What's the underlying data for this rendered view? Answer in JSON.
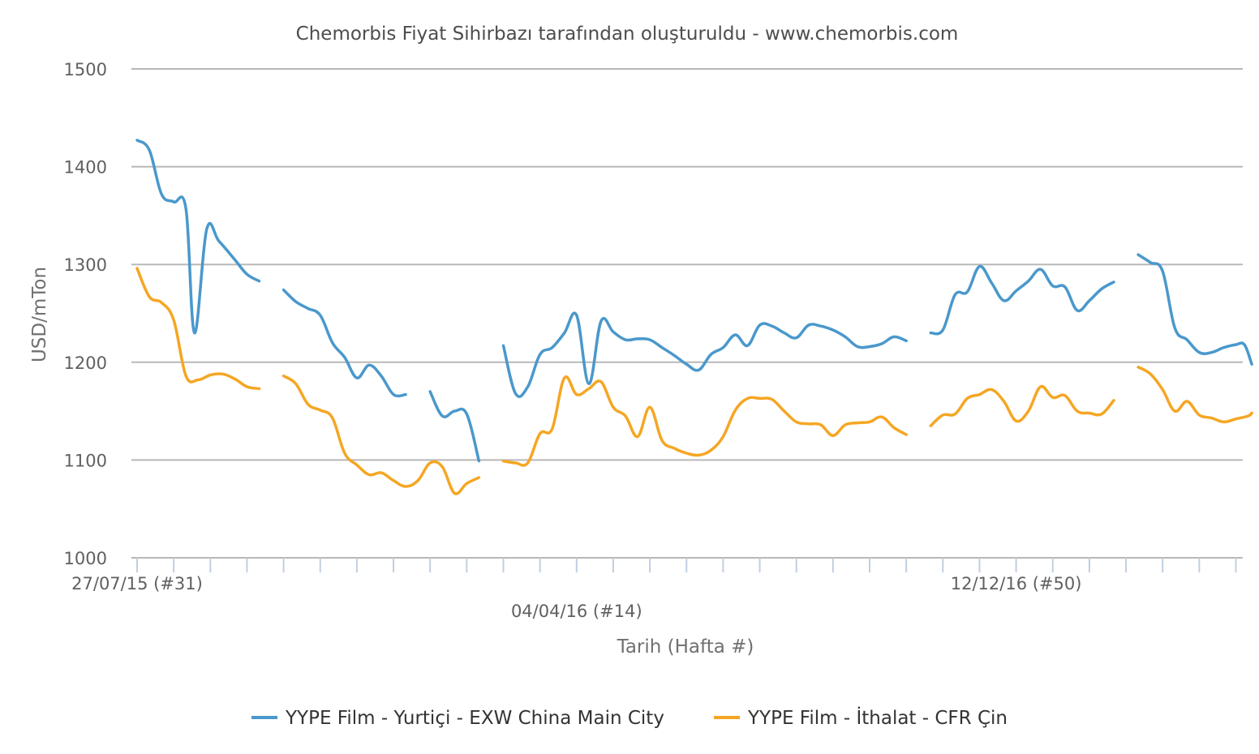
{
  "chart_data": {
    "type": "line",
    "title": "Chemorbis Fiyat Sihirbazı tarafından oluşturuldu - www.chemorbis.com",
    "xlabel": "Tarih (Hafta #)",
    "ylabel": "USD/mTon",
    "ylim": [
      1000,
      1500
    ],
    "yticks": [
      1000,
      1100,
      1200,
      1300,
      1400,
      1500
    ],
    "x_tick_labels": [
      {
        "label": "27/07/15 (#31)",
        "week": 0
      },
      {
        "label": "04/04/16 (#14)",
        "week": 36
      },
      {
        "label": "12/12/16 (#50)",
        "week": 72
      }
    ],
    "x_range_weeks": [
      0,
      90
    ],
    "grid": true,
    "legend_position": "bottom",
    "series": [
      {
        "name": "YYPE Film - Yurtiçi - EXW China Main City",
        "color": "#4a98cc",
        "segments": [
          [
            [
              0,
              1427
            ],
            [
              1,
              1417
            ],
            [
              2,
              1372
            ],
            [
              3,
              1364
            ],
            [
              4,
              1357
            ],
            [
              4.7,
              1230
            ],
            [
              5.7,
              1336
            ],
            [
              6.7,
              1324
            ],
            [
              8,
              1305
            ],
            [
              9,
              1290
            ],
            [
              10,
              1283
            ]
          ],
          [
            [
              12,
              1274
            ],
            [
              13,
              1262
            ],
            [
              14,
              1255
            ],
            [
              15,
              1248
            ],
            [
              16,
              1220
            ],
            [
              17,
              1205
            ],
            [
              18,
              1184
            ],
            [
              19,
              1197
            ],
            [
              20,
              1186
            ],
            [
              21,
              1167
            ],
            [
              22,
              1167
            ]
          ],
          [
            [
              24,
              1170
            ],
            [
              25,
              1145
            ],
            [
              26,
              1150
            ],
            [
              27,
              1147
            ],
            [
              28,
              1099
            ]
          ],
          [
            [
              30,
              1217
            ],
            [
              31,
              1168
            ],
            [
              32,
              1175
            ],
            [
              33,
              1208
            ],
            [
              34,
              1215
            ],
            [
              35,
              1230
            ],
            [
              36,
              1248
            ],
            [
              37,
              1178
            ],
            [
              38,
              1242
            ],
            [
              39,
              1231
            ],
            [
              40,
              1223
            ],
            [
              41,
              1224
            ],
            [
              42,
              1223
            ],
            [
              43,
              1215
            ],
            [
              44,
              1207
            ],
            [
              45,
              1198
            ],
            [
              46,
              1192
            ],
            [
              47,
              1208
            ],
            [
              48,
              1215
            ],
            [
              49,
              1228
            ],
            [
              50,
              1217
            ],
            [
              51,
              1238
            ],
            [
              52,
              1237
            ],
            [
              53,
              1230
            ],
            [
              54,
              1225
            ],
            [
              55,
              1238
            ],
            [
              56,
              1237
            ],
            [
              57,
              1233
            ],
            [
              58,
              1226
            ],
            [
              59,
              1216
            ],
            [
              60,
              1216
            ],
            [
              61,
              1219
            ],
            [
              62,
              1226
            ],
            [
              63,
              1222
            ]
          ],
          [
            [
              65,
              1230
            ],
            [
              66,
              1233
            ],
            [
              67,
              1269
            ],
            [
              68,
              1272
            ],
            [
              69,
              1298
            ],
            [
              70,
              1281
            ],
            [
              71,
              1263
            ],
            [
              72,
              1273
            ],
            [
              73,
              1283
            ],
            [
              74,
              1295
            ],
            [
              75,
              1278
            ],
            [
              76,
              1277
            ],
            [
              77,
              1253
            ],
            [
              78,
              1263
            ],
            [
              79,
              1275
            ],
            [
              80,
              1282
            ]
          ],
          [
            [
              82,
              1310
            ],
            [
              83,
              1302
            ],
            [
              84,
              1293
            ],
            [
              85,
              1235
            ],
            [
              86,
              1223
            ],
            [
              87,
              1210
            ],
            [
              88,
              1210
            ],
            [
              89,
              1215
            ],
            [
              90,
              1218
            ],
            [
              90.7,
              1218
            ],
            [
              91.3,
              1198
            ]
          ]
        ]
      },
      {
        "name": "YYPE Film - İthalat - CFR Çin",
        "color": "#f5a623",
        "segments": [
          [
            [
              0,
              1296
            ],
            [
              1,
              1267
            ],
            [
              2,
              1261
            ],
            [
              3,
              1243
            ],
            [
              4,
              1186
            ],
            [
              5,
              1182
            ],
            [
              6,
              1187
            ],
            [
              7,
              1188
            ],
            [
              8,
              1183
            ],
            [
              9,
              1175
            ],
            [
              10,
              1173
            ]
          ],
          [
            [
              12,
              1186
            ],
            [
              13,
              1178
            ],
            [
              14,
              1157
            ],
            [
              15,
              1151
            ],
            [
              16,
              1143
            ],
            [
              17,
              1107
            ],
            [
              18,
              1095
            ],
            [
              19,
              1085
            ],
            [
              20,
              1087
            ],
            [
              21,
              1079
            ],
            [
              22,
              1073
            ],
            [
              23,
              1079
            ],
            [
              24,
              1097
            ],
            [
              25,
              1093
            ],
            [
              26,
              1066
            ],
            [
              27,
              1076
            ],
            [
              28,
              1082
            ]
          ],
          [
            [
              30,
              1099
            ],
            [
              31,
              1097
            ],
            [
              32,
              1097
            ],
            [
              33,
              1127
            ],
            [
              34,
              1132
            ],
            [
              35,
              1184
            ],
            [
              36,
              1167
            ],
            [
              37,
              1173
            ],
            [
              38,
              1180
            ],
            [
              39,
              1154
            ],
            [
              40,
              1145
            ],
            [
              41,
              1124
            ],
            [
              42,
              1154
            ],
            [
              43,
              1120
            ],
            [
              44,
              1112
            ],
            [
              45,
              1107
            ],
            [
              46,
              1105
            ],
            [
              47,
              1110
            ],
            [
              48,
              1124
            ],
            [
              49,
              1151
            ],
            [
              50,
              1163
            ],
            [
              51,
              1163
            ],
            [
              52,
              1162
            ],
            [
              53,
              1150
            ],
            [
              54,
              1139
            ],
            [
              55,
              1137
            ],
            [
              56,
              1136
            ],
            [
              57,
              1125
            ],
            [
              58,
              1136
            ],
            [
              59,
              1138
            ],
            [
              60,
              1139
            ],
            [
              61,
              1144
            ],
            [
              62,
              1133
            ],
            [
              63,
              1126
            ]
          ],
          [
            [
              65,
              1135
            ],
            [
              66,
              1146
            ],
            [
              67,
              1147
            ],
            [
              68,
              1163
            ],
            [
              69,
              1167
            ],
            [
              70,
              1172
            ],
            [
              71,
              1160
            ],
            [
              72,
              1140
            ],
            [
              73,
              1150
            ],
            [
              74,
              1175
            ],
            [
              75,
              1164
            ],
            [
              76,
              1166
            ],
            [
              77,
              1150
            ],
            [
              78,
              1148
            ],
            [
              79,
              1147
            ],
            [
              80,
              1161
            ]
          ],
          [
            [
              82,
              1195
            ],
            [
              83,
              1188
            ],
            [
              84,
              1172
            ],
            [
              85,
              1150
            ],
            [
              86,
              1160
            ],
            [
              87,
              1146
            ],
            [
              88,
              1143
            ],
            [
              89,
              1139
            ],
            [
              90,
              1142
            ],
            [
              91,
              1145
            ],
            [
              91.3,
              1148
            ]
          ]
        ]
      }
    ]
  }
}
